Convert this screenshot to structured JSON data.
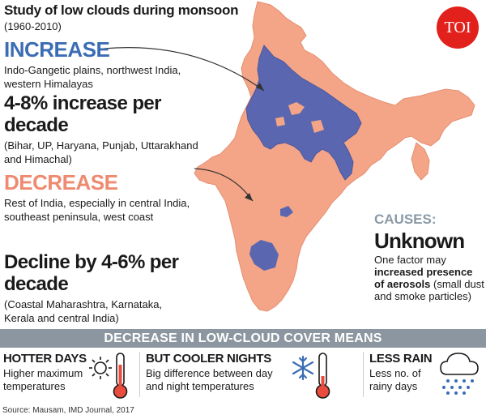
{
  "header": {
    "title": "Study of low clouds during monsoon",
    "years": "(1960-2010)",
    "logo_text": "TOI"
  },
  "increase": {
    "heading": "INCREASE",
    "regions": "Indo-Gangetic plains, northwest India, western Himalayas",
    "stat": "4-8% increase per decade",
    "states": "(Bihar, UP, Haryana, Punjab, Uttarakhand and Himachal)"
  },
  "decrease": {
    "heading": "DECREASE",
    "regions": "Rest of India, especially in central India, southeast peninsula, west coast",
    "stat": "Decline by 4-6% per decade",
    "states": "(Coastal Maharashtra, Karnataka, Kerala and central India)"
  },
  "causes": {
    "heading": "CAUSES:",
    "value": "Unknown",
    "desc_pre": "One factor may",
    "desc_bold": "increased presence of aerosols",
    "desc_post": "(small dust and smoke particles)"
  },
  "effects_banner": "DECREASE IN LOW-CLOUD COVER MEANS",
  "effects": [
    {
      "heading": "HOTTER DAYS",
      "desc": "Higher maximum temperatures",
      "icon": "sun-thermometer-icon"
    },
    {
      "heading": "BUT COOLER NIGHTS",
      "desc": "Big difference between day and night temperatures",
      "icon": "snowflake-thermometer-icon"
    },
    {
      "heading": "LESS RAIN",
      "desc": "Less no. of rainy days",
      "icon": "rain-cloud-icon"
    }
  ],
  "source": "Source: Mausam, IMD Journal, 2017",
  "colors": {
    "increase": "#5a67b0",
    "decrease": "#f4a587",
    "blue_text": "#3b6db4",
    "banner": "#8c96a0",
    "logo": "#e2201c"
  }
}
